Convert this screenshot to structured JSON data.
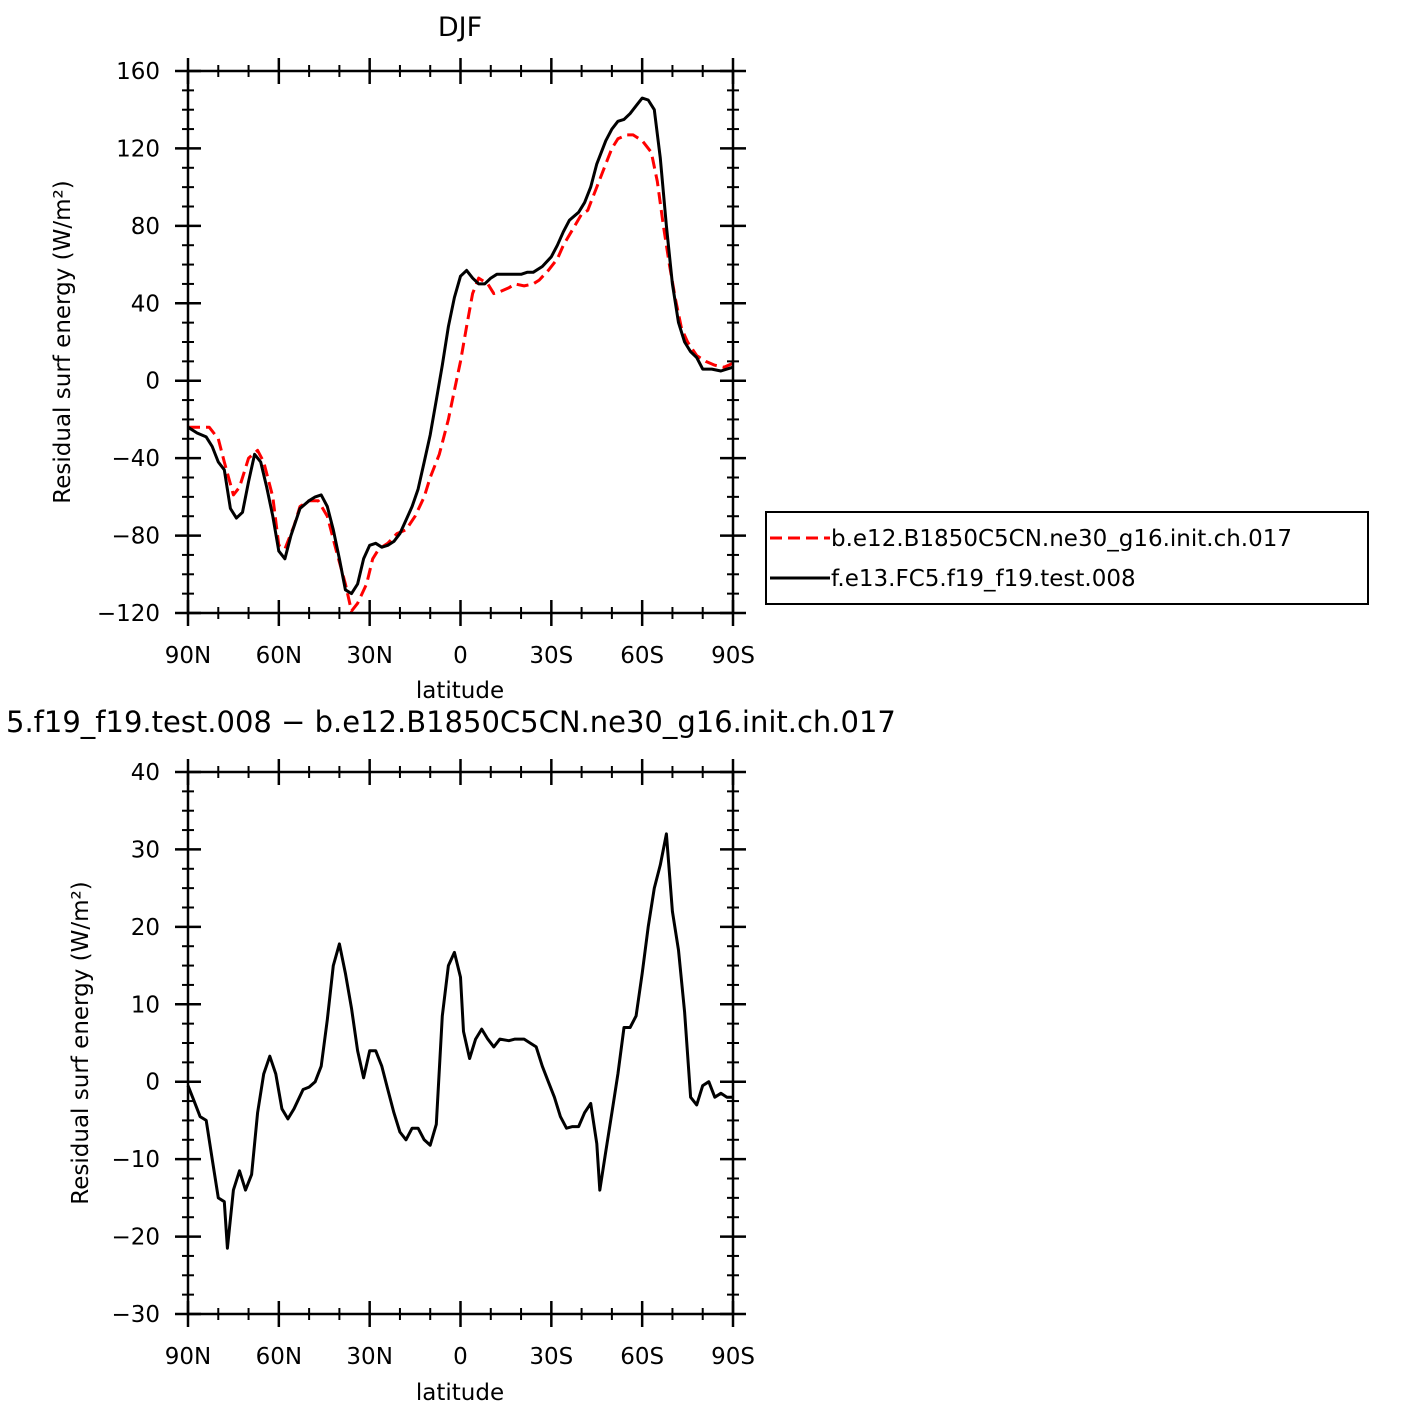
{
  "chart_data": [
    {
      "type": "line",
      "title": "DJF",
      "xlabel": "latitude",
      "ylabel": "Residual surf energy (W/m²)",
      "xticks": [
        "90N",
        "60N",
        "30N",
        "0",
        "30S",
        "60S",
        "90S"
      ],
      "yticks": [
        "160",
        "120",
        "80",
        "40",
        "0",
        "−40",
        "−80",
        "−120"
      ],
      "ylim": [
        -120,
        160
      ],
      "xlim": [
        90,
        -90
      ],
      "legend_position": "right",
      "series": [
        {
          "name": "b.e12.B1850C5CN.ne30_g16.init.ch.017",
          "color": "#ff0000",
          "style": "dashed",
          "points": [
            [
              90,
              -24
            ],
            [
              86,
              -24
            ],
            [
              83,
              -24
            ],
            [
              80,
              -30
            ],
            [
              78,
              -42
            ],
            [
              75,
              -59
            ],
            [
              73,
              -55
            ],
            [
              70,
              -40
            ],
            [
              67,
              -36
            ],
            [
              65,
              -42
            ],
            [
              62,
              -60
            ],
            [
              60,
              -85
            ],
            [
              58,
              -87
            ],
            [
              55,
              -75
            ],
            [
              53,
              -65
            ],
            [
              50,
              -62
            ],
            [
              47,
              -62
            ],
            [
              44,
              -70
            ],
            [
              41,
              -88
            ],
            [
              38,
              -105
            ],
            [
              36,
              -119
            ],
            [
              34,
              -115
            ],
            [
              31,
              -105
            ],
            [
              29,
              -92
            ],
            [
              27,
              -87
            ],
            [
              24,
              -84
            ],
            [
              21,
              -79
            ],
            [
              18,
              -77
            ],
            [
              15,
              -70
            ],
            [
              12,
              -60
            ],
            [
              10,
              -50
            ],
            [
              7,
              -38
            ],
            [
              4,
              -20
            ],
            [
              2,
              -5
            ],
            [
              0,
              10
            ],
            [
              -2,
              28
            ],
            [
              -4,
              45
            ],
            [
              -6,
              53
            ],
            [
              -9,
              50
            ],
            [
              -11,
              45
            ],
            [
              -13,
              46
            ],
            [
              -16,
              48
            ],
            [
              -18,
              50
            ],
            [
              -21,
              49
            ],
            [
              -24,
              50
            ],
            [
              -26,
              52
            ],
            [
              -29,
              57
            ],
            [
              -32,
              63
            ],
            [
              -34,
              70
            ],
            [
              -37,
              78
            ],
            [
              -40,
              86
            ],
            [
              -42,
              88
            ],
            [
              -45,
              100
            ],
            [
              -48,
              112
            ],
            [
              -50,
              120
            ],
            [
              -52,
              125
            ],
            [
              -55,
              127
            ],
            [
              -57,
              127
            ],
            [
              -60,
              124
            ],
            [
              -63,
              118
            ],
            [
              -65,
              103
            ],
            [
              -67,
              80
            ],
            [
              -69,
              60
            ],
            [
              -71,
              42
            ],
            [
              -73,
              27
            ],
            [
              -75,
              20
            ],
            [
              -78,
              13
            ],
            [
              -81,
              10
            ],
            [
              -84,
              8
            ],
            [
              -87,
              7
            ],
            [
              -90,
              9
            ]
          ]
        },
        {
          "name": "f.e13.FC5.f19_f19.test.008",
          "color": "#000000",
          "style": "solid",
          "points": [
            [
              90,
              -24
            ],
            [
              87,
              -27
            ],
            [
              84,
              -29
            ],
            [
              82,
              -34
            ],
            [
              80,
              -42
            ],
            [
              78,
              -46
            ],
            [
              76,
              -66
            ],
            [
              74,
              -71
            ],
            [
              72,
              -68
            ],
            [
              70,
              -52
            ],
            [
              68,
              -38
            ],
            [
              66,
              -42
            ],
            [
              64,
              -55
            ],
            [
              62,
              -70
            ],
            [
              60,
              -88
            ],
            [
              58,
              -92
            ],
            [
              56,
              -80
            ],
            [
              53,
              -66
            ],
            [
              50,
              -62
            ],
            [
              48,
              -60
            ],
            [
              46,
              -59
            ],
            [
              44,
              -65
            ],
            [
              42,
              -77
            ],
            [
              40,
              -92
            ],
            [
              38,
              -108
            ],
            [
              36,
              -110
            ],
            [
              34,
              -105
            ],
            [
              32,
              -92
            ],
            [
              30,
              -85
            ],
            [
              28,
              -84
            ],
            [
              26,
              -86
            ],
            [
              24,
              -85
            ],
            [
              22,
              -83
            ],
            [
              20,
              -79
            ],
            [
              18,
              -72
            ],
            [
              16,
              -65
            ],
            [
              14,
              -56
            ],
            [
              12,
              -42
            ],
            [
              10,
              -28
            ],
            [
              8,
              -10
            ],
            [
              6,
              8
            ],
            [
              4,
              28
            ],
            [
              2,
              43
            ],
            [
              0,
              54
            ],
            [
              -2,
              57
            ],
            [
              -4,
              53
            ],
            [
              -6,
              50
            ],
            [
              -8,
              50
            ],
            [
              -10,
              53
            ],
            [
              -12,
              55
            ],
            [
              -15,
              55
            ],
            [
              -17,
              55
            ],
            [
              -20,
              55
            ],
            [
              -22,
              56
            ],
            [
              -24,
              56
            ],
            [
              -27,
              59
            ],
            [
              -30,
              64
            ],
            [
              -32,
              70
            ],
            [
              -34,
              77
            ],
            [
              -36,
              83
            ],
            [
              -39,
              87
            ],
            [
              -41,
              92
            ],
            [
              -43,
              100
            ],
            [
              -45,
              112
            ],
            [
              -48,
              124
            ],
            [
              -50,
              130
            ],
            [
              -52,
              134
            ],
            [
              -54,
              135
            ],
            [
              -56,
              138
            ],
            [
              -58,
              142
            ],
            [
              -60,
              146
            ],
            [
              -62,
              145
            ],
            [
              -64,
              140
            ],
            [
              -66,
              115
            ],
            [
              -68,
              80
            ],
            [
              -70,
              50
            ],
            [
              -72,
              30
            ],
            [
              -74,
              20
            ],
            [
              -76,
              15
            ],
            [
              -78,
              12
            ],
            [
              -80,
              6
            ],
            [
              -83,
              6
            ],
            [
              -86,
              5
            ],
            [
              -88,
              6
            ],
            [
              -90,
              7
            ]
          ]
        }
      ]
    },
    {
      "type": "line",
      "title": "5.f19_f19.test.008 − b.e12.B1850C5CN.ne30_g16.init.ch.017",
      "xlabel": "latitude",
      "ylabel": "Residual surf energy (W/m²)",
      "xticks": [
        "90N",
        "60N",
        "30N",
        "0",
        "30S",
        "60S",
        "90S"
      ],
      "yticks": [
        "40",
        "30",
        "20",
        "10",
        "0",
        "−10",
        "−20",
        "−30"
      ],
      "ylim": [
        -30,
        40
      ],
      "xlim": [
        90,
        -90
      ],
      "series": [
        {
          "color": "#000000",
          "style": "solid",
          "points": [
            [
              90,
              -0.5
            ],
            [
              88,
              -2.5
            ],
            [
              86,
              -4.5
            ],
            [
              84,
              -5
            ],
            [
              82,
              -10
            ],
            [
              80,
              -15
            ],
            [
              78,
              -15.5
            ],
            [
              77,
              -21.5
            ],
            [
              75,
              -14
            ],
            [
              73,
              -11.5
            ],
            [
              71,
              -14
            ],
            [
              69,
              -12
            ],
            [
              67,
              -4
            ],
            [
              65,
              1
            ],
            [
              63,
              3.3
            ],
            [
              61,
              1
            ],
            [
              59,
              -3.5
            ],
            [
              57,
              -4.8
            ],
            [
              55,
              -3.5
            ],
            [
              52,
              -1
            ],
            [
              50,
              -0.7
            ],
            [
              48,
              0
            ],
            [
              46,
              2
            ],
            [
              44,
              8
            ],
            [
              42,
              15
            ],
            [
              40,
              17.8
            ],
            [
              38,
              14
            ],
            [
              36,
              9.5
            ],
            [
              34,
              4
            ],
            [
              32,
              0.5
            ],
            [
              30,
              4
            ],
            [
              28,
              4
            ],
            [
              26,
              2
            ],
            [
              24,
              -1
            ],
            [
              22,
              -4
            ],
            [
              20,
              -6.5
            ],
            [
              18,
              -7.5
            ],
            [
              16,
              -6
            ],
            [
              14,
              -6
            ],
            [
              12,
              -7.5
            ],
            [
              10,
              -8.2
            ],
            [
              8,
              -5.5
            ],
            [
              6,
              8.5
            ],
            [
              4,
              15
            ],
            [
              2,
              16.7
            ],
            [
              0,
              13.5
            ],
            [
              -1,
              6.5
            ],
            [
              -3,
              3
            ],
            [
              -5,
              5.5
            ],
            [
              -7,
              6.8
            ],
            [
              -9,
              5.5
            ],
            [
              -11,
              4.5
            ],
            [
              -13,
              5.5
            ],
            [
              -16,
              5.3
            ],
            [
              -18,
              5.5
            ],
            [
              -21,
              5.5
            ],
            [
              -23,
              5
            ],
            [
              -25,
              4.5
            ],
            [
              -27,
              2
            ],
            [
              -29,
              0
            ],
            [
              -31,
              -2
            ],
            [
              -33,
              -4.5
            ],
            [
              -35,
              -6
            ],
            [
              -37,
              -5.8
            ],
            [
              -39,
              -5.8
            ],
            [
              -41,
              -4
            ],
            [
              -43,
              -2.8
            ],
            [
              -45,
              -8
            ],
            [
              -46,
              -14
            ],
            [
              -48,
              -9
            ],
            [
              -50,
              -4
            ],
            [
              -52,
              1
            ],
            [
              -54,
              7
            ],
            [
              -56,
              7
            ],
            [
              -58,
              8.5
            ],
            [
              -60,
              14
            ],
            [
              -62,
              20
            ],
            [
              -64,
              25
            ],
            [
              -66,
              28
            ],
            [
              -68,
              32
            ],
            [
              -70,
              22
            ],
            [
              -72,
              17
            ],
            [
              -74,
              9
            ],
            [
              -76,
              -2
            ],
            [
              -78,
              -3
            ],
            [
              -80,
              -0.5
            ],
            [
              -82,
              0
            ],
            [
              -84,
              -2
            ],
            [
              -86,
              -1.5
            ],
            [
              -88,
              -2
            ],
            [
              -90,
              -2
            ]
          ]
        }
      ]
    }
  ]
}
